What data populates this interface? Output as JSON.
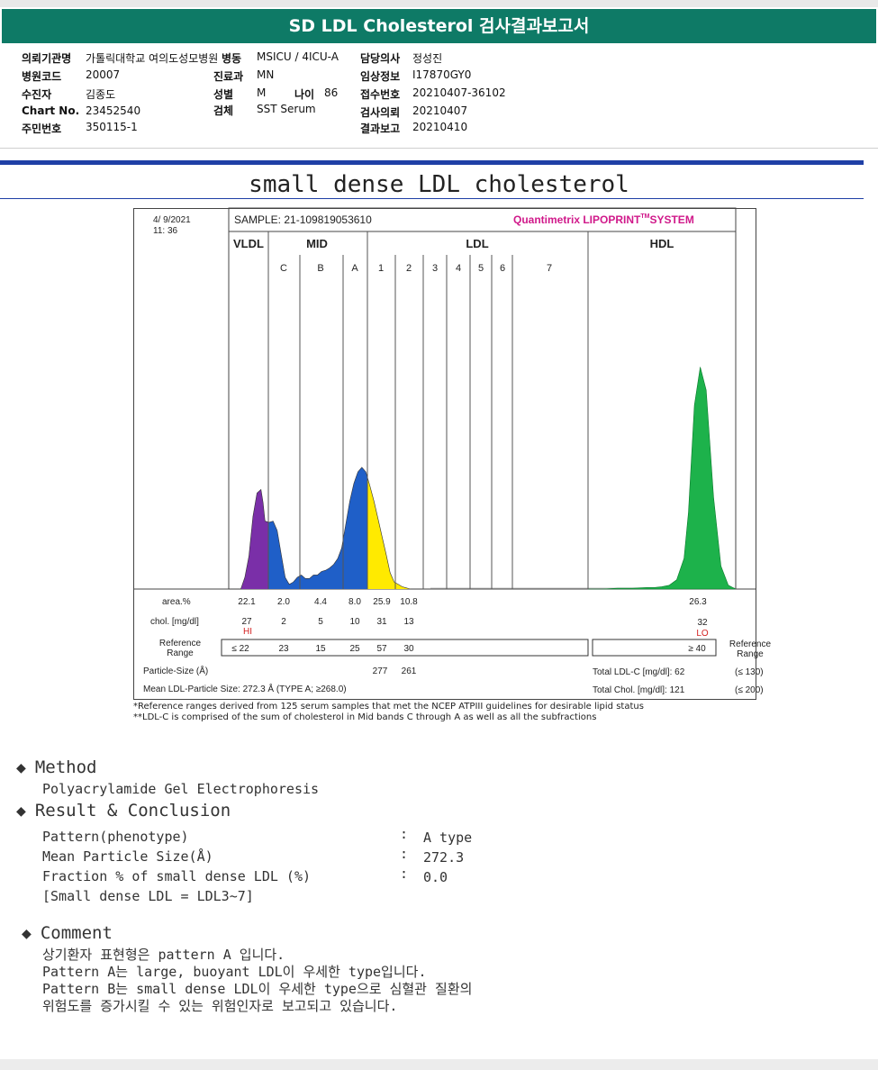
{
  "header": {
    "title": "SD LDL Cholesterol 검사결과보고서"
  },
  "patient_info": {
    "col1": [
      {
        "label": "의뢰기관명",
        "value": "가톨릭대학교 여의도성모병원"
      },
      {
        "label": "병원코드",
        "value": "20007"
      },
      {
        "label": "수진자",
        "value": "김종도"
      },
      {
        "label": "Chart No.",
        "value": "23452540"
      },
      {
        "label": "주민번호",
        "value": "350115-1"
      }
    ],
    "col2": [
      {
        "label": "병동",
        "value": "MSICU / 4ICU-A"
      },
      {
        "label": "진료과",
        "value": "MN"
      },
      {
        "label": "성별",
        "value": "M"
      },
      {
        "label": "검체",
        "value": "SST Serum"
      }
    ],
    "age": {
      "label": "나이",
      "value": "86"
    },
    "col3": [
      {
        "label": "담당의사",
        "value": "정성진"
      },
      {
        "label": "임상정보",
        "value": "I17870GY0"
      },
      {
        "label": "접수번호",
        "value": "20210407-36102"
      },
      {
        "label": "검사의뢰",
        "value": "20210407"
      },
      {
        "label": "결과보고",
        "value": "20210410"
      }
    ]
  },
  "report_title": "small dense LDL cholesterol",
  "chart_data": {
    "type": "area",
    "title": "Quantimetrix LIPOPRINT SYSTEM",
    "brand": {
      "name": "Quantimetrix LIPOPRINT",
      "sup": "TM",
      "suffix": "SYSTEM"
    },
    "date": "4/  9/2021",
    "time": "11: 36",
    "sample": "SAMPLE:  21-109819053610",
    "groups": [
      "VLDL",
      "MID",
      "LDL",
      "HDL"
    ],
    "bands": [
      "C",
      "B",
      "A",
      "1",
      "2",
      "3",
      "4",
      "5",
      "6",
      "7"
    ],
    "profile_x": [
      0,
      2,
      4,
      6,
      8,
      10,
      12,
      14,
      16,
      17,
      18,
      20,
      22,
      24,
      26,
      28,
      30,
      32,
      34,
      36,
      38,
      40,
      42,
      44,
      46,
      48,
      50,
      52,
      54,
      56,
      58,
      60,
      62,
      64,
      66,
      68,
      70,
      72,
      74,
      76,
      78,
      80,
      82,
      84,
      86,
      88,
      90,
      92,
      94,
      96,
      98,
      100
    ],
    "profile_y": [
      0,
      0,
      0,
      0,
      10,
      28,
      62,
      82,
      85,
      74,
      58,
      57,
      58,
      50,
      30,
      10,
      4,
      6,
      10,
      12,
      9,
      9,
      12,
      12,
      15,
      16,
      18,
      21,
      26,
      35,
      55,
      75,
      90,
      100,
      104,
      100,
      88,
      75,
      60,
      45,
      30,
      14,
      6,
      4,
      2,
      1,
      0,
      0,
      0,
      0,
      0,
      0
    ],
    "hdl_x": [
      0,
      10,
      20,
      30,
      40,
      45,
      50,
      55,
      60,
      65,
      68,
      72,
      76,
      80,
      85,
      90,
      95,
      100
    ],
    "hdl_y": [
      0,
      0,
      1,
      1,
      2,
      2,
      3,
      5,
      12,
      40,
      100,
      240,
      290,
      260,
      120,
      30,
      5,
      0
    ],
    "colors": {
      "vldl": "#7a2fa8",
      "mid": "#1f5fc8",
      "ldl": "#ffea00",
      "small": "#e2304a",
      "hdl": "#1db24b"
    },
    "rows": {
      "area_label": "area.%",
      "area": [
        "22.1",
        "2.0",
        "4.4",
        "8.0",
        "25.9",
        "10.8"
      ],
      "hdl_area": "26.3",
      "chol_label": "chol. [mg/dl]",
      "chol": [
        "27",
        "2",
        "5",
        "10",
        "31",
        "13"
      ],
      "hdl_chol": "32",
      "hi_flag": "HI",
      "lo_flag": "LO",
      "ref_label": "Reference Range",
      "ref_label_right": "Reference Range",
      "ref": [
        "≤ 22",
        "23",
        "15",
        "25",
        "57",
        "30"
      ],
      "hdl_ref": "≥ 40",
      "particle_label": "Particle-Size (Å)",
      "particle": [
        "277",
        "261"
      ],
      "mean_label": "Mean LDL-Particle Size:  272.3 Å  (TYPE A; ≥268.0)",
      "total_ldl": "Total LDL-C [mg/dl]:  62",
      "total_ldl_ref": "(≤ 130)",
      "total_chol": "Total Chol. [mg/dl]:  121",
      "total_chol_ref": "(≤ 200)"
    }
  },
  "footnotes": [
    "*Reference ranges derived from 125 serum samples that met the NCEP ATPIII guidelines for desirable lipid status",
    "**LDL-C is comprised of the sum of cholesterol in Mid bands C through A as well as all the subfractions"
  ],
  "method": {
    "heading": "Method",
    "text": "Polyacrylamide Gel Electrophoresis"
  },
  "result": {
    "heading": "Result & Conclusion",
    "items": [
      {
        "label": "Pattern(phenotype)",
        "value": "A type"
      },
      {
        "label": "Mean Particle Size(Å)",
        "value": "272.3"
      },
      {
        "label": "Fraction % of small dense LDL (%)",
        "value": "0.0"
      }
    ],
    "note": "[Small dense LDL = LDL3~7]"
  },
  "comment": {
    "heading": "Comment",
    "lines": [
      "상기환자 표현형은 pattern A 입니다.",
      "Pattern A는 large, buoyant LDL이 우세한 type입니다.",
      "Pattern B는 small dense LDL이 우세한 type으로 심혈관 질환의",
      "위험도를 증가시킬 수 있는 위험인자로 보고되고 있습니다."
    ]
  }
}
